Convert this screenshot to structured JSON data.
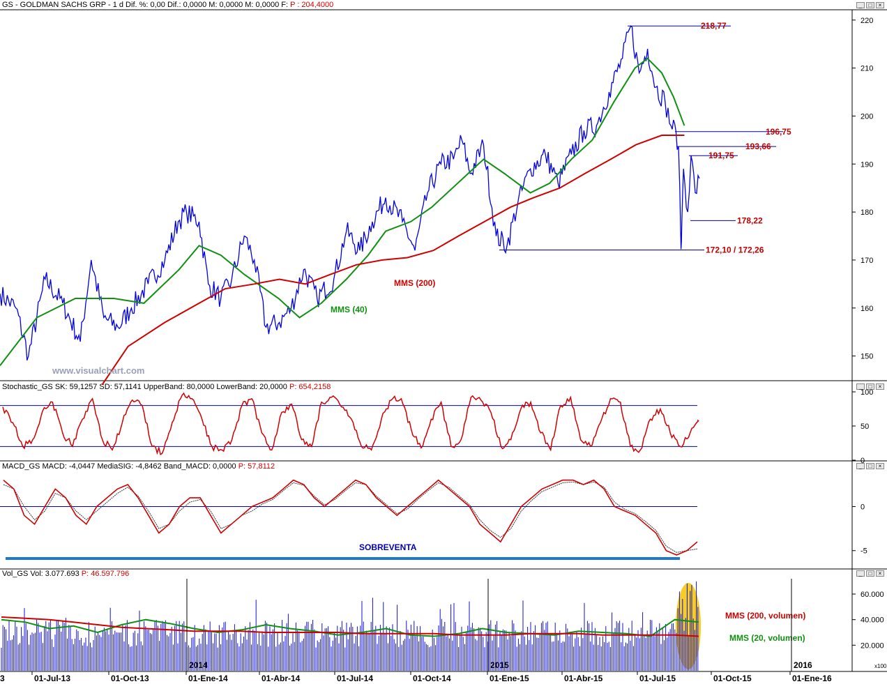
{
  "panels": {
    "price": {
      "title": "GS - GOLDMAN SACHS GRP - 1 d  Dif. %: 0,00  Dif.: 0,0000  M: 0,0000  M: 0,0000  F:",
      "pval": "P : 204,4000"
    },
    "stochastic": {
      "title": "Stochastic_GS  SK: 59,1257  SD: 57,1141  UpperBand: 80,0000  LowerBand: 20,0000",
      "pval": "P: 654,2158"
    },
    "macd": {
      "title": "MACD_GS  MACD: -4,0447  MediaSIG: -4,8462  Band_MACD: 0,0000",
      "pval": "P: 57,8112"
    },
    "volume": {
      "title": "Vol_GS  Vol: 3.077.693",
      "pval": "P: 46.597.796"
    }
  },
  "watermark": "www.visualchart.com",
  "colors": {
    "price": "#0000e0",
    "sma200": "#d00000",
    "sma40": "#109010",
    "level_line": "#0000a0",
    "level_text": "#c00000",
    "stoch_k": "#d00000",
    "macd": "#d00000",
    "band_line": "#0000c0",
    "sobreventa_bar": "#1e78d0",
    "highlight": "#f5c400"
  },
  "chart_data": [
    {
      "type": "line",
      "panel": "price",
      "x_start": "2013-06-01",
      "x_end": "2015-08-28",
      "y_ticks": [
        150,
        160,
        170,
        180,
        190,
        200,
        210,
        220
      ],
      "ylim": [
        145,
        222
      ],
      "series": [
        {
          "name": "",
          "role": "close",
          "points": [
            [
              "2013-06-01",
              163
            ],
            [
              "2013-06-20",
              160
            ],
            [
              "2013-07-05",
              150
            ],
            [
              "2013-07-25",
              166
            ],
            [
              "2013-08-15",
              161
            ],
            [
              "2013-09-05",
              153
            ],
            [
              "2013-09-18",
              170
            ],
            [
              "2013-10-03",
              158
            ],
            [
              "2013-10-20",
              156
            ],
            [
              "2013-11-05",
              160
            ],
            [
              "2013-11-25",
              165
            ],
            [
              "2013-12-15",
              170
            ],
            [
              "2013-12-31",
              178
            ],
            [
              "2014-01-10",
              180
            ],
            [
              "2014-01-25",
              178
            ],
            [
              "2014-02-05",
              165
            ],
            [
              "2014-02-20",
              162
            ],
            [
              "2014-03-05",
              166
            ],
            [
              "2014-03-20",
              175
            ],
            [
              "2014-04-01",
              170
            ],
            [
              "2014-04-15",
              156
            ],
            [
              "2014-05-01",
              157
            ],
            [
              "2014-05-15",
              160
            ],
            [
              "2014-05-30",
              168
            ],
            [
              "2014-06-15",
              162
            ],
            [
              "2014-07-05",
              166
            ],
            [
              "2014-07-20",
              176
            ],
            [
              "2014-08-05",
              172
            ],
            [
              "2014-08-20",
              178
            ],
            [
              "2014-09-05",
              183
            ],
            [
              "2014-09-25",
              178
            ],
            [
              "2014-10-10",
              172
            ],
            [
              "2014-10-25",
              184
            ],
            [
              "2014-11-10",
              190
            ],
            [
              "2014-11-25",
              191
            ],
            [
              "2014-12-05",
              195
            ],
            [
              "2014-12-15",
              188
            ],
            [
              "2014-12-31",
              194
            ],
            [
              "2015-01-15",
              175
            ],
            [
              "2015-01-28",
              173
            ],
            [
              "2015-02-10",
              182
            ],
            [
              "2015-02-25",
              189
            ],
            [
              "2015-03-15",
              192
            ],
            [
              "2015-03-30",
              186
            ],
            [
              "2015-04-15",
              192
            ],
            [
              "2015-04-30",
              197
            ],
            [
              "2015-05-15",
              198
            ],
            [
              "2015-05-30",
              205
            ],
            [
              "2015-06-15",
              212
            ],
            [
              "2015-06-25",
              218.77
            ],
            [
              "2015-07-05",
              209
            ],
            [
              "2015-07-15",
              214
            ],
            [
              "2015-07-25",
              206
            ],
            [
              "2015-08-05",
              203
            ],
            [
              "2015-08-12",
              198
            ],
            [
              "2015-08-18",
              196.75
            ],
            [
              "2015-08-21",
              193.66
            ],
            [
              "2015-08-24",
              172.26
            ],
            [
              "2015-08-25",
              178
            ],
            [
              "2015-08-27",
              189
            ],
            [
              "2015-09-01",
              180
            ],
            [
              "2015-09-05",
              191.75
            ],
            [
              "2015-09-10",
              184
            ],
            [
              "2015-09-15",
              187
            ]
          ]
        },
        {
          "name": "MMS (40)",
          "points": [
            [
              "2013-06-01",
              148
            ],
            [
              "2013-07-15",
              158
            ],
            [
              "2013-08-30",
              162
            ],
            [
              "2013-10-15",
              162
            ],
            [
              "2013-11-20",
              161
            ],
            [
              "2014-01-01",
              168
            ],
            [
              "2014-01-25",
              173
            ],
            [
              "2014-02-20",
              171
            ],
            [
              "2014-03-20",
              167
            ],
            [
              "2014-04-30",
              162
            ],
            [
              "2014-05-25",
              158
            ],
            [
              "2014-06-20",
              161
            ],
            [
              "2014-07-20",
              166
            ],
            [
              "2014-08-15",
              171
            ],
            [
              "2014-09-05",
              176
            ],
            [
              "2014-10-05",
              178
            ],
            [
              "2014-10-30",
              181
            ],
            [
              "2014-11-30",
              186
            ],
            [
              "2014-12-31",
              191
            ],
            [
              "2015-01-25",
              188
            ],
            [
              "2015-02-25",
              184
            ],
            [
              "2015-03-20",
              186
            ],
            [
              "2015-04-15",
              191
            ],
            [
              "2015-05-10",
              195
            ],
            [
              "2015-06-05",
              203
            ],
            [
              "2015-06-30",
              210
            ],
            [
              "2015-07-15",
              212
            ],
            [
              "2015-08-01",
              209
            ],
            [
              "2015-08-15",
              204
            ],
            [
              "2015-08-28",
              198
            ]
          ]
        },
        {
          "name": "MMS (200)",
          "points": [
            [
              "2013-10-01",
              144
            ],
            [
              "2013-11-01",
              152
            ],
            [
              "2013-12-15",
              157
            ],
            [
              "2014-01-25",
              161
            ],
            [
              "2014-02-25",
              164
            ],
            [
              "2014-04-01",
              165
            ],
            [
              "2014-05-01",
              166
            ],
            [
              "2014-06-01",
              165
            ],
            [
              "2014-07-01",
              167
            ],
            [
              "2014-08-01",
              169
            ],
            [
              "2014-09-01",
              170
            ],
            [
              "2014-10-01",
              170.5
            ],
            [
              "2014-11-01",
              172
            ],
            [
              "2014-12-01",
              175
            ],
            [
              "2015-01-01",
              178
            ],
            [
              "2015-02-01",
              181
            ],
            [
              "2015-03-01",
              183
            ],
            [
              "2015-04-01",
              185
            ],
            [
              "2015-05-01",
              188
            ],
            [
              "2015-06-01",
              191
            ],
            [
              "2015-07-01",
              194
            ],
            [
              "2015-08-01",
              196
            ],
            [
              "2015-08-28",
              196
            ]
          ]
        }
      ],
      "levels": [
        {
          "label": "218,77",
          "value": 218.77
        },
        {
          "label": "196,75",
          "value": 196.75
        },
        {
          "label": "193,66",
          "value": 193.66
        },
        {
          "label": "191,75",
          "value": 191.75
        },
        {
          "label": "178,22",
          "value": 178.22
        },
        {
          "label": "172,10 / 172,26",
          "value": 172.1
        }
      ]
    },
    {
      "type": "line",
      "panel": "stochastic",
      "y_ticks": [
        0,
        50,
        100
      ],
      "ylim": [
        0,
        100
      ],
      "bands": [
        80,
        20
      ],
      "series": [
        {
          "name": "SK",
          "values": [
            78,
            55,
            20,
            30,
            72,
            85,
            40,
            20,
            60,
            90,
            30,
            15,
            55,
            88,
            80,
            20,
            10,
            55,
            95,
            90,
            60,
            20,
            15,
            30,
            80,
            90,
            40,
            15,
            70,
            82,
            30,
            20,
            85,
            92,
            78,
            60,
            20,
            15,
            60,
            88,
            90,
            45,
            18,
            60,
            85,
            20,
            30,
            92,
            88,
            70,
            20,
            30,
            75,
            85,
            40,
            15,
            80,
            92,
            30,
            20,
            55,
            90,
            85,
            20,
            15,
            60,
            75,
            40,
            20,
            40,
            59
          ]
        }
      ]
    },
    {
      "type": "line",
      "panel": "macd",
      "y_ticks": [
        -5,
        0
      ],
      "ylim": [
        -7,
        4
      ],
      "annotation": "SOBREVENTA",
      "series": [
        {
          "name": "MACD",
          "values": [
            3,
            2,
            -1,
            -2,
            0,
            2,
            1,
            -1,
            -2,
            0,
            1,
            2,
            2.5,
            1,
            -1,
            -3,
            -2,
            0,
            1,
            1,
            -1,
            -3,
            -2,
            -1,
            0,
            0.5,
            1,
            2,
            3,
            2.5,
            1,
            0,
            1,
            2,
            3,
            2.5,
            1,
            0,
            -1,
            0,
            1,
            2,
            3,
            2,
            1,
            0,
            -2,
            -3,
            -4,
            -2,
            0,
            1,
            2,
            2.5,
            3,
            3,
            2.5,
            3,
            2,
            0,
            -0.5,
            -1,
            -2,
            -3,
            -5,
            -5.5,
            -5,
            -4
          ]
        },
        {
          "name": "MediaSIG",
          "values": [
            2.5,
            2,
            0,
            -1.5,
            -0.5,
            1.5,
            1,
            -0.5,
            -1.5,
            -0.5,
            0.5,
            1.5,
            2.2,
            1.2,
            -0.5,
            -2.5,
            -2,
            -0.5,
            0.5,
            0.8,
            -0.5,
            -2.5,
            -2,
            -1,
            -0.5,
            0.3,
            0.8,
            1.8,
            2.7,
            2.4,
            1.2,
            0.2,
            0.8,
            1.8,
            2.7,
            2.5,
            1.2,
            0.2,
            -0.8,
            -0.3,
            0.8,
            1.8,
            2.7,
            2.2,
            1.2,
            0.2,
            -1.5,
            -2.7,
            -3.5,
            -2.5,
            -0.5,
            0.7,
            1.7,
            2.2,
            2.7,
            2.8,
            2.5,
            2.8,
            2.2,
            0.5,
            -0.3,
            -0.8,
            -1.7,
            -2.7,
            -4.5,
            -5.2,
            -5.0,
            -4.8
          ]
        }
      ]
    },
    {
      "type": "bar",
      "panel": "volume",
      "y_ticks": [
        20000,
        40000,
        60000
      ],
      "tick_labels": [
        "20.000",
        "40.000",
        "60.000"
      ],
      "unit_label": "x100",
      "series": [
        {
          "name": "MMS (200, volumen)",
          "values": [
            42,
            41,
            40,
            38,
            36,
            34,
            33,
            32,
            31,
            31,
            31,
            30,
            30,
            30,
            30,
            29,
            29,
            29,
            29,
            28,
            28,
            28,
            29,
            29,
            29,
            28,
            28,
            28,
            28,
            27
          ]
        },
        {
          "name": "MMS (20, volumen)",
          "values": [
            40,
            38,
            33,
            35,
            30,
            36,
            40,
            37,
            33,
            30,
            32,
            36,
            33,
            31,
            28,
            30,
            33,
            28,
            27,
            29,
            33,
            30,
            29,
            28,
            31,
            30,
            29,
            27,
            40,
            38
          ]
        }
      ]
    }
  ],
  "x_axis": {
    "labels": [
      "01-Jul-13",
      "01-Oct-13",
      "01-Ene-14",
      "01-Abr-14",
      "01-Jul-14",
      "01-Oct-14",
      "01-Ene-15",
      "01-Abr-15",
      "01-Jul-15",
      "01-Oct-15",
      "01-Ene-16"
    ],
    "year_labels": [
      "2014",
      "2015",
      "2016"
    ]
  }
}
